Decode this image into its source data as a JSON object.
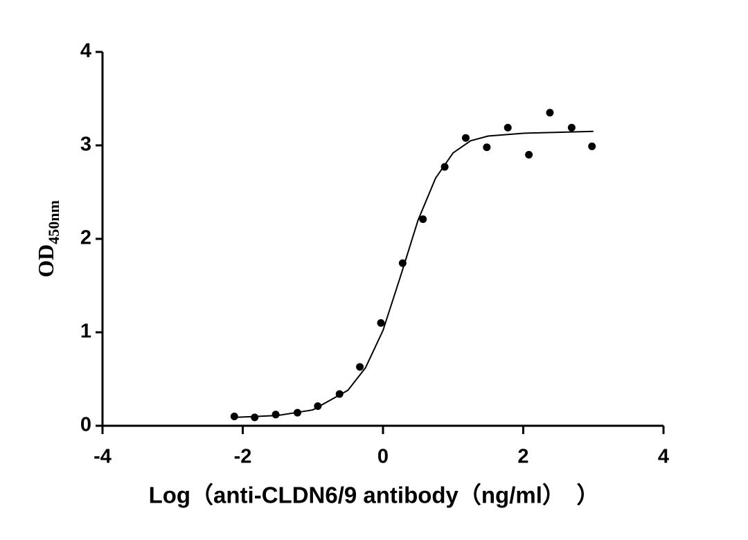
{
  "chart_data": {
    "type": "scatter",
    "x_label": "Log（anti-CLDN6/9 antibody（ng/ml）　）",
    "y_label": "OD",
    "y_label_sub": "450nm",
    "x": [
      -2.12,
      -1.83,
      -1.53,
      -1.22,
      -0.93,
      -0.62,
      -0.33,
      -0.03,
      0.28,
      0.57,
      0.88,
      1.18,
      1.48,
      1.78,
      2.08,
      2.38,
      2.69,
      2.98
    ],
    "values": [
      0.1,
      0.09,
      0.12,
      0.14,
      0.21,
      0.34,
      0.63,
      1.1,
      1.74,
      2.21,
      2.77,
      3.08,
      2.98,
      3.19,
      2.9,
      3.35,
      3.19,
      2.99
    ],
    "color": "#000000",
    "fit": {
      "x": [
        -2.12,
        -1.5,
        -1,
        -0.5,
        -0.25,
        0,
        0.25,
        0.5,
        0.75,
        1,
        1.25,
        1.5,
        2,
        2.5,
        3
      ],
      "y": [
        0.09,
        0.11,
        0.17,
        0.38,
        0.62,
        1.02,
        1.6,
        2.2,
        2.65,
        2.92,
        3.05,
        3.1,
        3.13,
        3.14,
        3.15
      ]
    },
    "xlim": [
      -4,
      4
    ],
    "xticks": [
      -4,
      -2,
      0,
      2,
      4
    ],
    "ylim": [
      0,
      4
    ],
    "yticks": [
      0,
      1,
      2,
      3,
      4
    ],
    "grid": false
  }
}
